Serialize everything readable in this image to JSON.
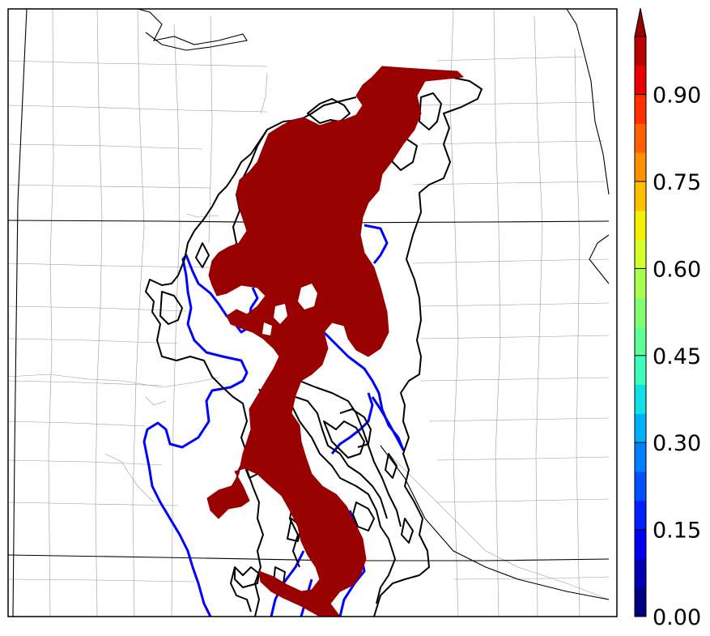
{
  "colorbar": {
    "ticks": [
      "0.00",
      "0.15",
      "0.30",
      "0.45",
      "0.60",
      "0.75",
      "0.90"
    ],
    "tick_values": [
      0.0,
      0.15,
      0.3,
      0.45,
      0.6,
      0.75,
      0.9
    ],
    "range": [
      0.0,
      1.0
    ],
    "extend": "max",
    "colormap": "jet",
    "colors": [
      "#00007f",
      "#0000b3",
      "#0000f0",
      "#0020ff",
      "#0050ff",
      "#0080ff",
      "#00b0ff",
      "#12e0e4",
      "#3cffba",
      "#60ff96",
      "#84ff72",
      "#a8ff4e",
      "#d4ff2b",
      "#f4f000",
      "#ffc000",
      "#ff9000",
      "#ff6000",
      "#ff3000",
      "#e60000",
      "#b80000",
      "#960000"
    ]
  },
  "map": {
    "shading_color": "#990000",
    "contour_black": "#000000",
    "contour_blue": "#0000ff"
  }
}
